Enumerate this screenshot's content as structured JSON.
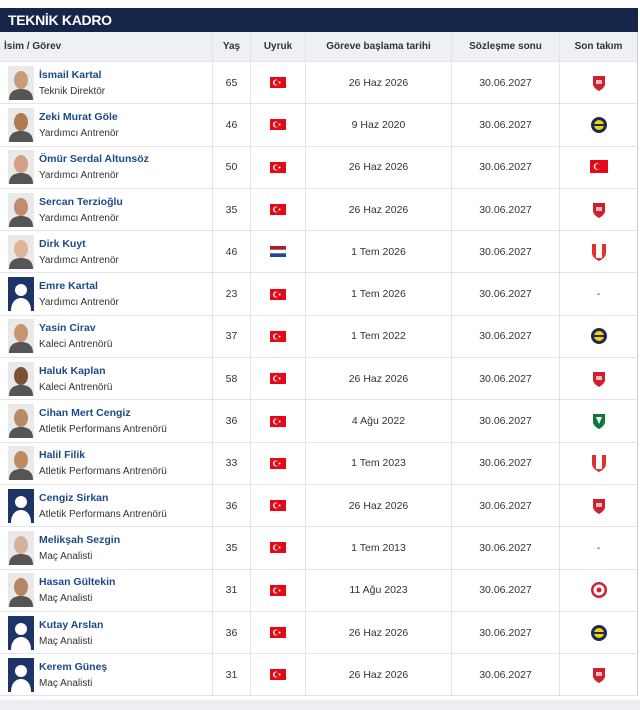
{
  "header": {
    "title": "TEKNİK KADRO"
  },
  "table": {
    "columns": [
      "İsim / Görev",
      "Yaş",
      "Uyruk",
      "Göreve başlama tarihi",
      "Sözleşme sonu",
      "Son takım"
    ],
    "rows": [
      {
        "name": "İsmail Kartal",
        "role": "Teknik Direktör",
        "age": 65,
        "start": "26 Haz 2026",
        "end": "30.06.2027"
      },
      {
        "name": "Zeki Murat Göle",
        "role": "Yardımcı Antrenör",
        "age": 46,
        "start": "9 Haz 2020",
        "end": "30.06.2027"
      },
      {
        "name": "Ömür Serdal Altunsöz",
        "role": "Yardımcı Antrenör",
        "age": 50,
        "start": "26 Haz 2026",
        "end": "30.06.2027"
      },
      {
        "name": "Sercan Terzioğlu",
        "role": "Yardımcı Antrenör",
        "age": 35,
        "start": "26 Haz 2026",
        "end": "30.06.2027"
      },
      {
        "name": "Dirk Kuyt",
        "role": "Yardımcı Antrenör",
        "age": 46,
        "start": "1 Tem 2026",
        "end": "30.06.2027"
      },
      {
        "name": "Emre Kartal",
        "role": "Yardımcı Antrenör",
        "age": 23,
        "start": "1 Tem 2026",
        "end": "30.06.2027",
        "club": "-"
      },
      {
        "name": "Yasin Cirav",
        "role": "Kaleci Antrenörü",
        "age": 37,
        "start": "1 Tem 2022",
        "end": "30.06.2027"
      },
      {
        "name": "Haluk Kaplan",
        "role": "Kaleci Antrenörü",
        "age": 58,
        "start": "26 Haz 2026",
        "end": "30.06.2027"
      },
      {
        "name": "Cihan Mert Cengiz",
        "role": "Atletik Performans Antrenörü",
        "age": 36,
        "start": "4 Ağu 2022",
        "end": "30.06.2027"
      },
      {
        "name": "Halil Filik",
        "role": "Atletik Performans Antrenörü",
        "age": 33,
        "start": "1 Tem 2023",
        "end": "30.06.2027"
      },
      {
        "name": "Cengiz Sirkan",
        "role": "Atletik Performans Antrenörü",
        "age": 36,
        "start": "26 Haz 2026",
        "end": "30.06.2027"
      },
      {
        "name": "Melikşah Sezgin",
        "role": "Maç Analisti",
        "age": 35,
        "start": "1 Tem 2013",
        "end": "30.06.2027",
        "club": "-"
      },
      {
        "name": "Hasan Gültekin",
        "role": "Maç Analisti",
        "age": 31,
        "start": "11 Ağu 2023",
        "end": "30.06.2027"
      },
      {
        "name": "Kutay Arslan",
        "role": "Maç Analisti",
        "age": 36,
        "start": "26 Haz 2026",
        "end": "30.06.2027"
      },
      {
        "name": "Kerem Güneş",
        "role": "Maç Analisti",
        "age": 31,
        "start": "26 Haz 2026",
        "end": "30.06.2027"
      }
    ]
  }
}
